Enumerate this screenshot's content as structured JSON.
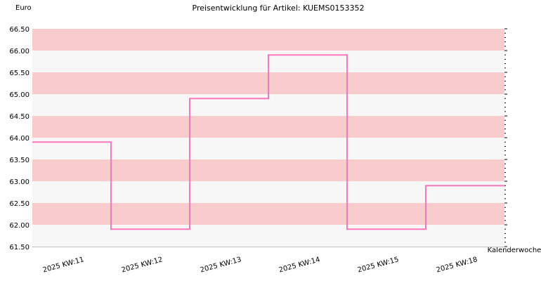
{
  "chart_data": {
    "type": "line",
    "step": "post",
    "title": "Preisentwicklung für Artikel: KUEMS0153352",
    "ylabel": "Euro",
    "xlabel": "Kalenderwoche",
    "ylim": [
      61.5,
      66.5
    ],
    "yticks": [
      "66.50",
      "66.00",
      "65.50",
      "65.00",
      "64.50",
      "64.00",
      "63.50",
      "63.00",
      "62.50",
      "62.00",
      "61.50"
    ],
    "categories": [
      "2025 KW:11",
      "2025 KW:12",
      "2025 KW:13",
      "2025 KW:14",
      "2025 KW:15",
      "2025 KW:18"
    ],
    "values": [
      63.9,
      61.9,
      64.9,
      65.9,
      61.9,
      62.9
    ],
    "colors": {
      "line": "#ff77bb",
      "band_a": "#f8cccc",
      "band_b": "#f7f7f7"
    },
    "grid": true,
    "legend": "none"
  }
}
